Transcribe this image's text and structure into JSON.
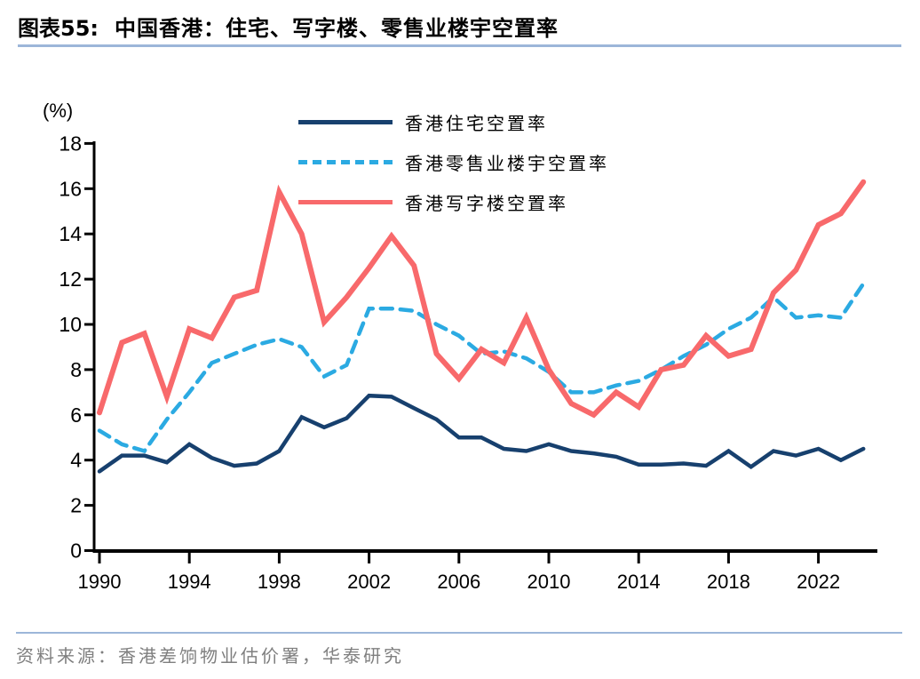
{
  "header": {
    "title_prefix": "图表55:",
    "title_main": "中国香港：住宅、写字楼、零售业楼宇空置率"
  },
  "footer": {
    "source": "资料来源：香港差饷物业估价署，华泰研究"
  },
  "colors": {
    "title_text": "#000000",
    "title_rule": "#9CB6D9",
    "footer_rule": "#9CB6D9",
    "footer_text": "#7F7F7F",
    "axis": "#000000",
    "residential_line": "#17406E",
    "retail_line": "#2BAAE2",
    "office_line": "#F8696B"
  },
  "chart_data": {
    "type": "line",
    "title": "中国香港：住宅、写字楼、零售业楼宇空置率",
    "ylabel": "(%)",
    "xlabel": "",
    "ylim": [
      0,
      18
    ],
    "ytick_step": 2,
    "yticks": [
      0,
      2,
      4,
      6,
      8,
      10,
      12,
      14,
      16,
      18
    ],
    "xticks": [
      1990,
      1994,
      1998,
      2002,
      2006,
      2010,
      2014,
      2018,
      2022
    ],
    "grid": false,
    "legend_position": "top-center",
    "x": [
      1990,
      1991,
      1992,
      1993,
      1994,
      1995,
      1996,
      1997,
      1998,
      1999,
      2000,
      2001,
      2002,
      2003,
      2004,
      2005,
      2006,
      2007,
      2008,
      2009,
      2010,
      2011,
      2012,
      2013,
      2014,
      2015,
      2016,
      2017,
      2018,
      2019,
      2020,
      2021,
      2022,
      2023,
      2024
    ],
    "series": [
      {
        "name": "香港住宅空置率",
        "key": "residential",
        "color": "#17406E",
        "style": "solid",
        "values": [
          3.5,
          4.2,
          4.2,
          3.9,
          4.7,
          4.1,
          3.75,
          3.85,
          4.4,
          5.9,
          5.45,
          5.85,
          6.85,
          6.8,
          6.3,
          5.8,
          5.0,
          5.0,
          4.5,
          4.4,
          4.7,
          4.4,
          4.3,
          4.15,
          3.8,
          3.8,
          3.85,
          3.75,
          4.4,
          3.7,
          4.4,
          4.2,
          4.5,
          4.0,
          4.5
        ]
      },
      {
        "name": "香港零售业楼宇空置率",
        "key": "retail",
        "color": "#2BAAE2",
        "style": "dashed",
        "values": [
          5.3,
          4.7,
          4.4,
          5.8,
          7.0,
          8.3,
          8.7,
          9.1,
          9.35,
          9.0,
          7.7,
          8.2,
          10.7,
          10.7,
          10.6,
          10.0,
          9.5,
          8.7,
          8.8,
          8.5,
          7.9,
          7.0,
          7.0,
          7.3,
          7.5,
          8.0,
          8.6,
          9.1,
          9.8,
          10.3,
          11.2,
          10.3,
          10.4,
          10.3,
          11.8
        ]
      },
      {
        "name": "香港写字楼空置率",
        "key": "office",
        "color": "#F8696B",
        "style": "solid",
        "values": [
          6.1,
          9.2,
          9.6,
          6.8,
          9.8,
          9.4,
          11.2,
          11.5,
          15.85,
          14.0,
          10.1,
          11.2,
          12.5,
          13.9,
          12.6,
          8.7,
          7.6,
          8.9,
          8.3,
          10.3,
          8.0,
          6.5,
          6.0,
          7.0,
          6.35,
          8.0,
          8.2,
          9.5,
          8.6,
          8.9,
          11.4,
          12.4,
          14.4,
          14.9,
          16.3
        ]
      }
    ]
  }
}
